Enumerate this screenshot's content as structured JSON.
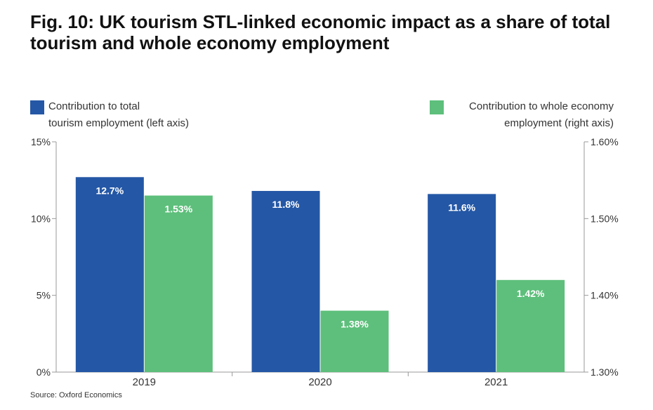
{
  "title": "Fig. 10: UK tourism STL-linked economic impact as a share of total tourism and whole economy employment",
  "source": "Source: Oxford Economics",
  "colors": {
    "blue": "#2457a6",
    "green": "#5dbf7b"
  },
  "legend": {
    "left_line1": "Contribution to total",
    "left_line2": "tourism employment (left axis)",
    "right_line1": "Contribution to whole economy",
    "right_line2": "employment (right axis)"
  },
  "chart_data": {
    "type": "bar",
    "categories": [
      "2019",
      "2020",
      "2021"
    ],
    "series": [
      {
        "name": "Contribution to total tourism employment (left axis)",
        "axis": "left",
        "values": [
          12.7,
          11.8,
          11.6
        ],
        "labels": [
          "12.7%",
          "11.8%",
          "11.6%"
        ]
      },
      {
        "name": "Contribution to whole economy employment (right axis)",
        "axis": "right",
        "values": [
          1.53,
          1.38,
          1.42
        ],
        "labels": [
          "1.53%",
          "1.38%",
          "1.42%"
        ]
      }
    ],
    "y_left": {
      "ylim": [
        0,
        15
      ],
      "ticks": [
        0,
        5,
        10,
        15
      ],
      "tick_labels": [
        "0%",
        "5%",
        "10%",
        "15%"
      ]
    },
    "y_right": {
      "ylim": [
        1.3,
        1.6
      ],
      "ticks": [
        1.3,
        1.4,
        1.5,
        1.6
      ],
      "tick_labels": [
        "1.30%",
        "1.40%",
        "1.50%",
        "1.60%"
      ]
    },
    "grid": false,
    "legend_placement": "top"
  }
}
